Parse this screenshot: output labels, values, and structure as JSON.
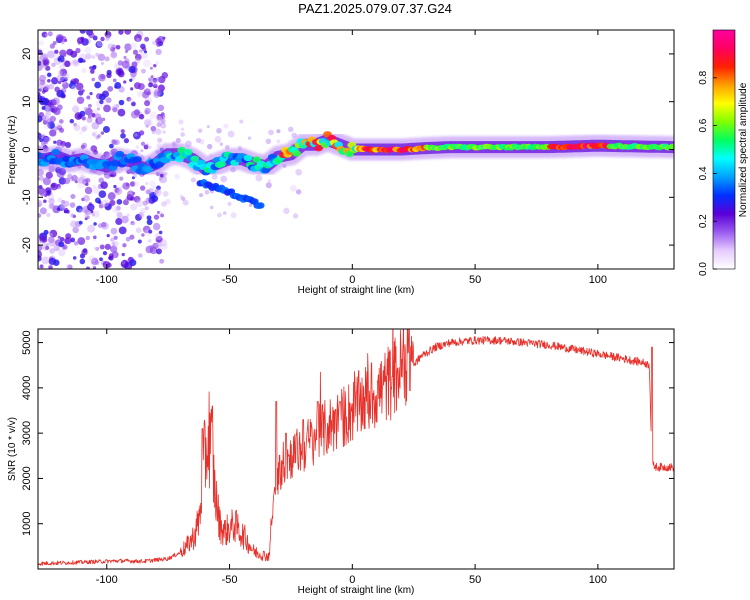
{
  "page": {
    "title": "PAZ1.2025.079.07.37.G24"
  },
  "chart_data": [
    {
      "type": "heatmap",
      "title": "PAZ1.2025.079.07.37.G24",
      "xlabel": "Height of straight line (km)",
      "ylabel": "Frequency (Hz)",
      "xlim": [
        -128,
        131
      ],
      "ylim": [
        -25,
        25
      ],
      "xticks": [
        -100,
        -50,
        0,
        50,
        100
      ],
      "yticks": [
        -20,
        -10,
        0,
        10,
        20
      ],
      "colorbar": {
        "label": "Normalized spectral amplitude",
        "range": [
          0,
          1
        ],
        "ticks": [
          0.0,
          0.2,
          0.4,
          0.6,
          0.8
        ],
        "colors": [
          "#ffffff",
          "#e6ccff",
          "#9b5cf0",
          "#5a00d8",
          "#0030ff",
          "#00a0ff",
          "#00ffff",
          "#00ff60",
          "#80ff00",
          "#ffff00",
          "#ffa000",
          "#ff2000",
          "#ff0060",
          "#ff00a0"
        ]
      },
      "ridge": {
        "x": [
          -125,
          -120,
          -115,
          -110,
          -105,
          -100,
          -95,
          -90,
          -85,
          -80,
          -75,
          -70,
          -65,
          -60,
          -55,
          -50,
          -45,
          -40,
          -35,
          -30,
          -25,
          -20,
          -15,
          -10,
          -5,
          0,
          5,
          10,
          20,
          30,
          40,
          60,
          80,
          100,
          120,
          131
        ],
        "y": [
          -2,
          -1.5,
          -2.5,
          -2,
          -3,
          -3.5,
          -2,
          -2.5,
          -4,
          -3,
          -1,
          -1,
          -2,
          -4,
          -3,
          -2,
          -2,
          -3,
          -3.5,
          -1.5,
          -1,
          1,
          1,
          2,
          1,
          0,
          0,
          0,
          0,
          0.3,
          0.5,
          0.5,
          0.5,
          0.8,
          0.6,
          0.5
        ]
      },
      "secondary_branch": {
        "x": [
          -62,
          -55,
          -50,
          -45,
          -40,
          -37
        ],
        "y": [
          -7,
          -8,
          -9,
          -10,
          -11,
          -12
        ]
      }
    },
    {
      "type": "line",
      "xlabel": "Height of straight line (km)",
      "ylabel": "SNR (10 * v/v)",
      "xlim": [
        -128,
        131
      ],
      "ylim": [
        0,
        5300
      ],
      "xticks": [
        -100,
        -50,
        0,
        50,
        100
      ],
      "yticks": [
        1000,
        2000,
        3000,
        4000,
        5000
      ],
      "color": "#e8302a",
      "envelope": {
        "x": [
          -128,
          -110,
          -95,
          -85,
          -75,
          -68,
          -64,
          -62,
          -60,
          -58,
          -56,
          -54,
          -52,
          -48,
          -44,
          -40,
          -36,
          -34,
          -32,
          -30,
          -26,
          -20,
          -14,
          -8,
          -2,
          4,
          10,
          16,
          22,
          28,
          34,
          40,
          50,
          60,
          70,
          80,
          90,
          100,
          110,
          119,
          121,
          122,
          124,
          131
        ],
        "y": [
          120,
          150,
          180,
          170,
          230,
          420,
          700,
          1100,
          2300,
          2800,
          1600,
          900,
          750,
          900,
          650,
          350,
          280,
          250,
          1400,
          2000,
          2300,
          2500,
          2800,
          3000,
          3200,
          3450,
          3650,
          3900,
          4300,
          4700,
          4900,
          5000,
          5050,
          5050,
          5000,
          4950,
          4850,
          4750,
          4650,
          4550,
          4500,
          2300,
          2250,
          2250
        ]
      },
      "spikes": [
        {
          "x": -61,
          "y": 3100
        },
        {
          "x": -57,
          "y": 3600
        },
        {
          "x": -31,
          "y": 3700
        },
        {
          "x": -27,
          "y": 3000
        },
        {
          "x": -20,
          "y": 3300
        },
        {
          "x": -14,
          "y": 3700
        },
        {
          "x": -5,
          "y": 3700
        },
        {
          "x": 122,
          "y": 4900
        }
      ]
    }
  ]
}
